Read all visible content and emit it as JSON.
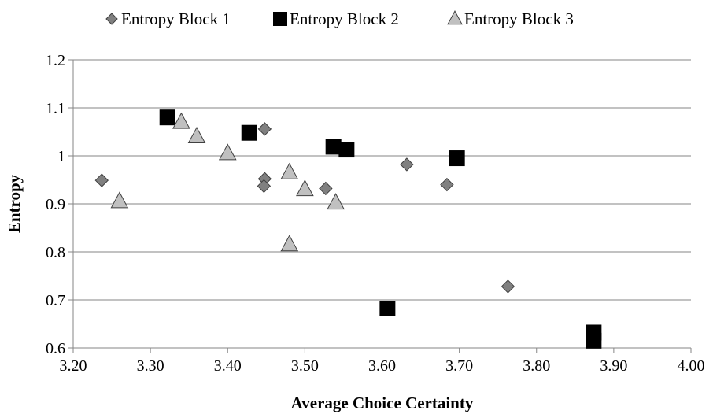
{
  "chart_data": {
    "type": "scatter",
    "title": "",
    "xlabel": "Average Choice Certainty",
    "ylabel": "Entropy",
    "xlim": [
      3.2,
      4.0
    ],
    "ylim": [
      0.6,
      1.2
    ],
    "x_ticks": [
      3.2,
      3.3,
      3.4,
      3.5,
      3.6,
      3.7,
      3.8,
      3.9,
      4.0
    ],
    "x_tick_labels": [
      "3.20",
      "3.30",
      "3.40",
      "3.50",
      "3.60",
      "3.70",
      "3.80",
      "3.90",
      "4.00"
    ],
    "y_ticks": [
      0.6,
      0.7,
      0.8,
      0.9,
      1.0,
      1.1,
      1.2
    ],
    "y_tick_labels": [
      "0.6",
      "0.7",
      "0.8",
      "0.9",
      "1",
      "1.1",
      "1.2"
    ],
    "grid": "horizontal",
    "legend_position": "top",
    "series": [
      {
        "name": "Entropy Block 1",
        "marker": "diamond",
        "color": "#808080",
        "points": [
          {
            "x": 3.237,
            "y": 0.949
          },
          {
            "x": 3.448,
            "y": 1.056
          },
          {
            "x": 3.448,
            "y": 0.952
          },
          {
            "x": 3.447,
            "y": 0.937
          },
          {
            "x": 3.527,
            "y": 0.932
          },
          {
            "x": 3.632,
            "y": 0.982
          },
          {
            "x": 3.684,
            "y": 0.94
          },
          {
            "x": 3.763,
            "y": 0.728
          }
        ]
      },
      {
        "name": "Entropy Block 2",
        "marker": "square",
        "color": "#000000",
        "points": [
          {
            "x": 3.322,
            "y": 1.08
          },
          {
            "x": 3.428,
            "y": 1.048
          },
          {
            "x": 3.537,
            "y": 1.019
          },
          {
            "x": 3.554,
            "y": 1.013
          },
          {
            "x": 3.697,
            "y": 0.995
          },
          {
            "x": 3.607,
            "y": 0.682
          },
          {
            "x": 3.874,
            "y": 0.632
          },
          {
            "x": 3.874,
            "y": 0.615
          }
        ]
      },
      {
        "name": "Entropy Block 3",
        "marker": "triangle",
        "color": "#c0c0c0",
        "points": [
          {
            "x": 3.26,
            "y": 0.905
          },
          {
            "x": 3.34,
            "y": 1.07
          },
          {
            "x": 3.36,
            "y": 1.04
          },
          {
            "x": 3.4,
            "y": 1.005
          },
          {
            "x": 3.48,
            "y": 0.965
          },
          {
            "x": 3.5,
            "y": 0.93
          },
          {
            "x": 3.54,
            "y": 0.902
          },
          {
            "x": 3.48,
            "y": 0.815
          }
        ]
      }
    ]
  }
}
